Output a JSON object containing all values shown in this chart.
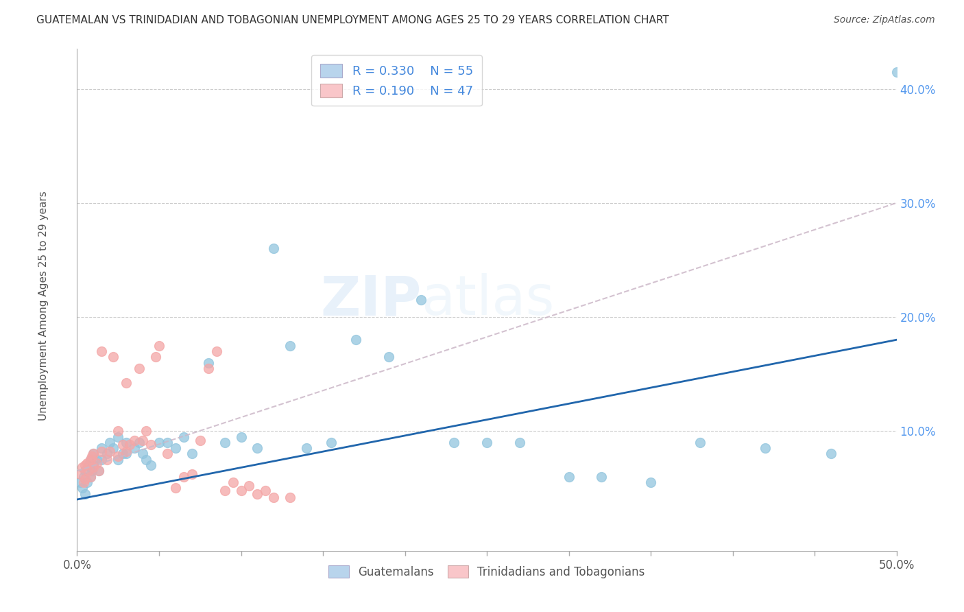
{
  "title": "GUATEMALAN VS TRINIDADIAN AND TOBAGONIAN UNEMPLOYMENT AMONG AGES 25 TO 29 YEARS CORRELATION CHART",
  "source": "Source: ZipAtlas.com",
  "ylabel": "Unemployment Among Ages 25 to 29 years",
  "xlim": [
    0.0,
    0.5
  ],
  "ylim": [
    -0.005,
    0.435
  ],
  "guatemalan_color": "#92c5de",
  "trinidadian_color": "#f4a6a6",
  "guatemalan_line_color": "#2166ac",
  "trinidadian_line_color": "#ccaaaa",
  "legend_box_color_guatemalan": "#b8d4ec",
  "legend_box_color_trinidadian": "#f9c6c9",
  "R_guatemalan": 0.33,
  "N_guatemalan": 55,
  "R_trinidadian": 0.19,
  "N_trinidadian": 47,
  "watermark_zip": "ZIP",
  "watermark_atlas": "atlas",
  "guatemalan_x": [
    0.002,
    0.003,
    0.004,
    0.005,
    0.005,
    0.006,
    0.007,
    0.008,
    0.008,
    0.009,
    0.01,
    0.01,
    0.012,
    0.013,
    0.015,
    0.015,
    0.018,
    0.02,
    0.022,
    0.025,
    0.025,
    0.028,
    0.03,
    0.03,
    0.035,
    0.038,
    0.04,
    0.042,
    0.045,
    0.05,
    0.055,
    0.06,
    0.065,
    0.07,
    0.08,
    0.09,
    0.1,
    0.11,
    0.12,
    0.13,
    0.14,
    0.155,
    0.17,
    0.19,
    0.21,
    0.23,
    0.25,
    0.27,
    0.3,
    0.32,
    0.35,
    0.38,
    0.42,
    0.46,
    0.5
  ],
  "guatemalan_y": [
    0.055,
    0.05,
    0.06,
    0.045,
    0.065,
    0.055,
    0.07,
    0.06,
    0.075,
    0.065,
    0.07,
    0.08,
    0.075,
    0.065,
    0.075,
    0.085,
    0.08,
    0.09,
    0.085,
    0.075,
    0.095,
    0.08,
    0.09,
    0.08,
    0.085,
    0.09,
    0.08,
    0.075,
    0.07,
    0.09,
    0.09,
    0.085,
    0.095,
    0.08,
    0.16,
    0.09,
    0.095,
    0.085,
    0.26,
    0.175,
    0.085,
    0.09,
    0.18,
    0.165,
    0.215,
    0.09,
    0.09,
    0.09,
    0.06,
    0.06,
    0.055,
    0.09,
    0.085,
    0.08,
    0.415
  ],
  "trinidadian_x": [
    0.002,
    0.003,
    0.004,
    0.005,
    0.005,
    0.006,
    0.007,
    0.008,
    0.008,
    0.009,
    0.01,
    0.01,
    0.012,
    0.013,
    0.015,
    0.015,
    0.018,
    0.02,
    0.022,
    0.025,
    0.025,
    0.028,
    0.03,
    0.03,
    0.032,
    0.035,
    0.038,
    0.04,
    0.042,
    0.045,
    0.048,
    0.05,
    0.055,
    0.06,
    0.065,
    0.07,
    0.075,
    0.08,
    0.085,
    0.09,
    0.095,
    0.1,
    0.105,
    0.11,
    0.115,
    0.12,
    0.13
  ],
  "trinidadian_y": [
    0.062,
    0.068,
    0.055,
    0.07,
    0.058,
    0.072,
    0.065,
    0.075,
    0.06,
    0.078,
    0.068,
    0.08,
    0.072,
    0.065,
    0.082,
    0.17,
    0.075,
    0.082,
    0.165,
    0.078,
    0.1,
    0.088,
    0.082,
    0.142,
    0.088,
    0.092,
    0.155,
    0.092,
    0.1,
    0.088,
    0.165,
    0.175,
    0.08,
    0.05,
    0.06,
    0.062,
    0.092,
    0.155,
    0.17,
    0.048,
    0.055,
    0.048,
    0.052,
    0.045,
    0.048,
    0.042,
    0.042
  ]
}
